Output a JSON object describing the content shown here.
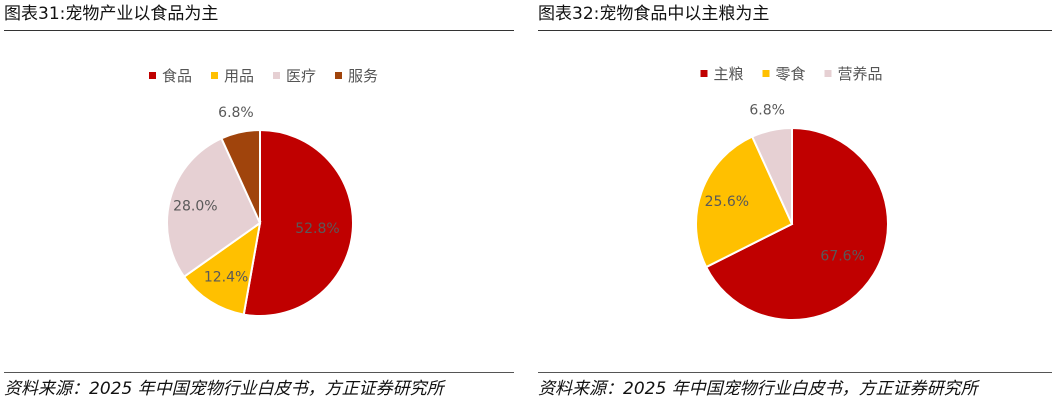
{
  "charts": [
    {
      "title": "图表31:宠物产业以食品为主",
      "source": "资料来源：2025 年中国宠物行业白皮书，方正证券研究所",
      "chart_data": {
        "type": "pie",
        "title": "图表31:宠物产业以食品为主",
        "legend_position": "top",
        "slices": [
          {
            "name": "食品",
            "value": 52.8,
            "label": "52.8%",
            "color": "#C00000"
          },
          {
            "name": "用品",
            "value": 12.4,
            "label": "12.4%",
            "color": "#FFC000"
          },
          {
            "name": "医疗",
            "value": 28.0,
            "label": "28.0%",
            "color": "#E6D0D3"
          },
          {
            "name": "服务",
            "value": 6.8,
            "label": "6.8%",
            "color": "#A0440C"
          }
        ]
      }
    },
    {
      "title": "图表32:宠物食品中以主粮为主",
      "source": "资料来源：2025 年中国宠物行业白皮书，方正证券研究所",
      "chart_data": {
        "type": "pie",
        "title": "图表32:宠物食品中以主粮为主",
        "legend_position": "top",
        "slices": [
          {
            "name": "主粮",
            "value": 67.6,
            "label": "67.6%",
            "color": "#C00000"
          },
          {
            "name": "零食",
            "value": 25.6,
            "label": "25.6%",
            "color": "#FFC000"
          },
          {
            "name": "营养品",
            "value": 6.8,
            "label": "6.8%",
            "color": "#E6D0D3"
          }
        ]
      }
    }
  ]
}
